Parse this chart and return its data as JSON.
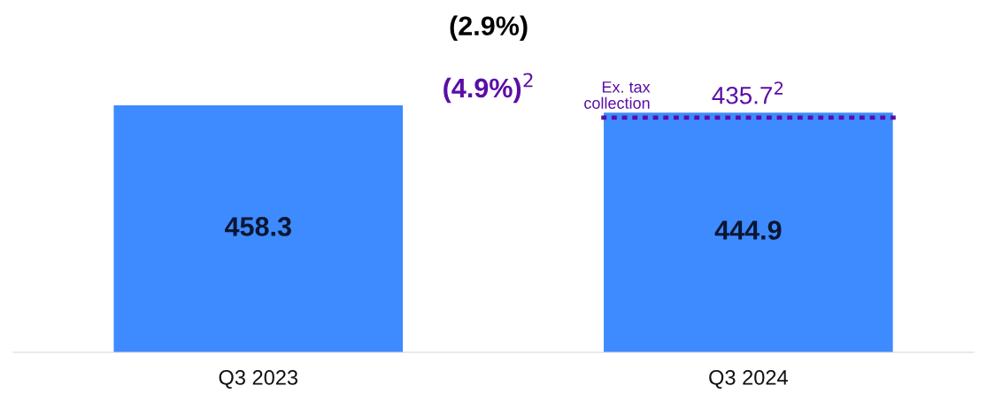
{
  "chart_data": {
    "type": "bar",
    "categories": [
      "Q3 2023",
      "Q3 2024"
    ],
    "values": [
      458.3,
      444.9
    ],
    "color": "#3d8bff",
    "data_labels": true,
    "ref_lines": [
      {
        "axis": "y",
        "value": 435.7,
        "label": "Ex. tax\ncollection",
        "color": "#5b0ea6",
        "line_style": "dotted"
      }
    ],
    "annotations": [
      "(2.9%)",
      "(4.9%)$^{2}$",
      {
        "text": "435.7$^{2}$",
        "x": "Q3 2024",
        "y": 435.7
      }
    ],
    "grid": false,
    "legend": false
  }
}
